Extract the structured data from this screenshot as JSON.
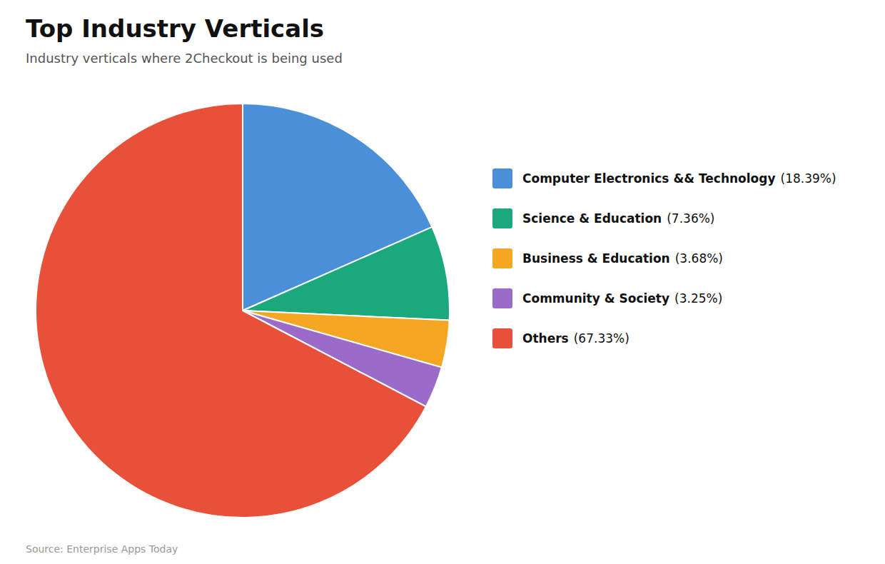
{
  "chart_data": {
    "type": "pie",
    "title": "Top Industry Verticals",
    "subtitle": "Industry verticals where 2Checkout is being used",
    "source": "Source: Enterprise Apps Today",
    "categories": [
      "Computer Electronics && Technology",
      "Science & Education",
      "Business & Education",
      "Community & Society",
      "Others"
    ],
    "values": [
      18.39,
      7.36,
      3.68,
      3.25,
      67.33
    ],
    "value_labels": [
      "(18.39%)",
      "(7.36%)",
      "(3.68%)",
      "(3.25%)",
      "(67.33%)"
    ],
    "colors": [
      "#4A90D9",
      "#1BA87C",
      "#F5A623",
      "#9B6BC9",
      "#E8503A"
    ],
    "legend": "right"
  }
}
